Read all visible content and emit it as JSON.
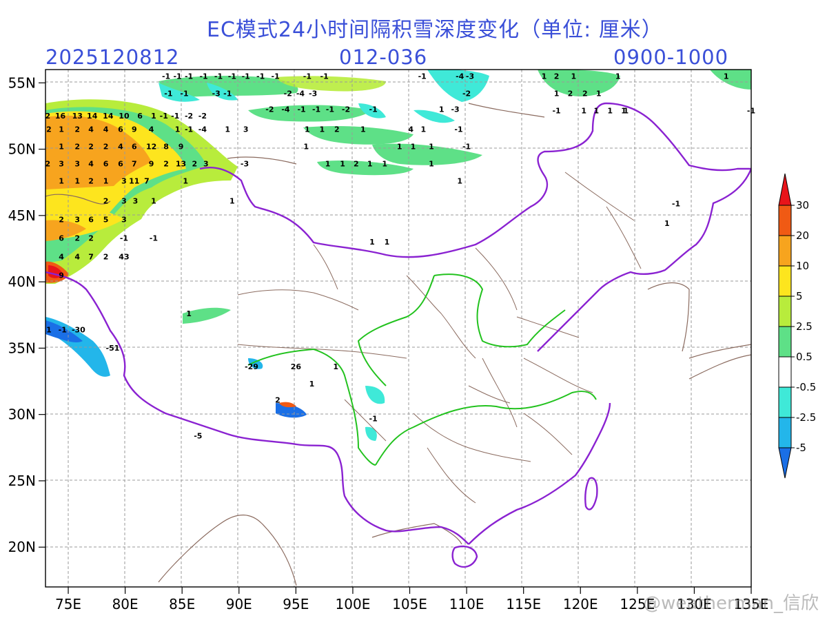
{
  "title": "EC模式24小时间隔积雪深度变化（单位: 厘米）",
  "init_time": "2025120812",
  "forecast_range": "012-036",
  "valid_range": "0900-1000",
  "watermark": "@weatherman_信欣",
  "lat_labels": [
    "55N",
    "50N",
    "45N",
    "40N",
    "35N",
    "30N",
    "25N",
    "20N"
  ],
  "lon_labels": [
    "75E",
    "80E",
    "85E",
    "90E",
    "95E",
    "100E",
    "105E",
    "110E",
    "115E",
    "120E",
    "125E",
    "130E",
    "135E"
  ],
  "colorbar": {
    "labels": [
      "30",
      "20",
      "10",
      "5",
      "2.5",
      "0.5",
      "-0.5",
      "-2.5",
      "-5"
    ],
    "colors": [
      "#e8141a",
      "#f05a14",
      "#f7a41e",
      "#fde51e",
      "#b8ec3c",
      "#5ee087",
      "#ffffff",
      "#3fe9d8",
      "#23b6ea",
      "#1a6fe6"
    ]
  },
  "map": {
    "region": "China",
    "lon_range": [
      73,
      135
    ],
    "lat_range": [
      17,
      56
    ],
    "gridlines": "dashed",
    "borders": {
      "national": "#8a22d1",
      "provincial": "#8a6a5e",
      "drainage": "#22c21e"
    }
  },
  "value_labels": [
    {
      "t": "2",
      "lon": 73.2,
      "lat": 52.3
    },
    {
      "t": "16",
      "lon": 74.3,
      "lat": 52.3
    },
    {
      "t": "13",
      "lon": 75.8,
      "lat": 52.3
    },
    {
      "t": "14",
      "lon": 77.1,
      "lat": 52.3
    },
    {
      "t": "14",
      "lon": 78.5,
      "lat": 52.3
    },
    {
      "t": "10",
      "lon": 79.9,
      "lat": 52.3
    },
    {
      "t": "6",
      "lon": 81.3,
      "lat": 52.3
    },
    {
      "t": "1",
      "lon": 82.5,
      "lat": 52.3
    },
    {
      "t": "-1",
      "lon": 83.4,
      "lat": 52.3
    },
    {
      "t": "-1",
      "lon": 84.4,
      "lat": 52.3
    },
    {
      "t": "-2",
      "lon": 85.6,
      "lat": 52.3
    },
    {
      "t": "-2",
      "lon": 86.8,
      "lat": 52.3
    },
    {
      "t": "2",
      "lon": 73.3,
      "lat": 51.3
    },
    {
      "t": "1",
      "lon": 74.4,
      "lat": 51.3
    },
    {
      "t": "2",
      "lon": 75.8,
      "lat": 51.3
    },
    {
      "t": "4",
      "lon": 77.0,
      "lat": 51.3
    },
    {
      "t": "4",
      "lon": 78.3,
      "lat": 51.3
    },
    {
      "t": "6",
      "lon": 79.6,
      "lat": 51.3
    },
    {
      "t": "9",
      "lon": 80.8,
      "lat": 51.3
    },
    {
      "t": "4",
      "lon": 82.3,
      "lat": 51.3
    },
    {
      "t": "1",
      "lon": 84.6,
      "lat": 51.3
    },
    {
      "t": "-1",
      "lon": 85.6,
      "lat": 51.3
    },
    {
      "t": "-4",
      "lon": 86.8,
      "lat": 51.3
    },
    {
      "t": "1",
      "lon": 89.0,
      "lat": 51.3
    },
    {
      "t": "3",
      "lon": 90.6,
      "lat": 51.3
    },
    {
      "t": "1",
      "lon": 74.4,
      "lat": 50.0
    },
    {
      "t": "2",
      "lon": 75.8,
      "lat": 50.0
    },
    {
      "t": "2",
      "lon": 77.0,
      "lat": 50.0
    },
    {
      "t": "2",
      "lon": 78.3,
      "lat": 50.0
    },
    {
      "t": "4",
      "lon": 79.6,
      "lat": 50.0
    },
    {
      "t": "6",
      "lon": 80.8,
      "lat": 50.0
    },
    {
      "t": "12",
      "lon": 82.3,
      "lat": 50.0
    },
    {
      "t": "8",
      "lon": 83.6,
      "lat": 50.0
    },
    {
      "t": "9",
      "lon": 84.9,
      "lat": 50.0
    },
    {
      "t": "2",
      "lon": 73.2,
      "lat": 48.7
    },
    {
      "t": "3",
      "lon": 74.4,
      "lat": 48.7
    },
    {
      "t": "3",
      "lon": 75.8,
      "lat": 48.7
    },
    {
      "t": "4",
      "lon": 77.0,
      "lat": 48.7
    },
    {
      "t": "6",
      "lon": 78.3,
      "lat": 48.7
    },
    {
      "t": "6",
      "lon": 79.6,
      "lat": 48.7
    },
    {
      "t": "7",
      "lon": 80.8,
      "lat": 48.7
    },
    {
      "t": "9",
      "lon": 82.3,
      "lat": 48.7
    },
    {
      "t": "2",
      "lon": 83.6,
      "lat": 48.7
    },
    {
      "t": "13",
      "lon": 84.9,
      "lat": 48.7
    },
    {
      "t": "2",
      "lon": 86.1,
      "lat": 48.7
    },
    {
      "t": "3",
      "lon": 87.1,
      "lat": 48.7
    },
    {
      "t": "-3",
      "lon": 90.5,
      "lat": 48.7
    },
    {
      "t": "1",
      "lon": 74.4,
      "lat": 47.4
    },
    {
      "t": "1",
      "lon": 75.8,
      "lat": 47.4
    },
    {
      "t": "2",
      "lon": 77.0,
      "lat": 47.4
    },
    {
      "t": "1",
      "lon": 78.3,
      "lat": 47.4
    },
    {
      "t": "3",
      "lon": 79.9,
      "lat": 47.4
    },
    {
      "t": "11",
      "lon": 80.8,
      "lat": 47.4
    },
    {
      "t": "7",
      "lon": 81.9,
      "lat": 47.4
    },
    {
      "t": "1",
      "lon": 85.3,
      "lat": 47.4
    },
    {
      "t": "2",
      "lon": 78.3,
      "lat": 45.9
    },
    {
      "t": "3",
      "lon": 79.9,
      "lat": 45.9
    },
    {
      "t": "3",
      "lon": 80.9,
      "lat": 45.9
    },
    {
      "t": "1",
      "lon": 82.5,
      "lat": 45.9
    },
    {
      "t": "1",
      "lon": 89.4,
      "lat": 45.9
    },
    {
      "t": "2",
      "lon": 74.4,
      "lat": 44.5
    },
    {
      "t": "3",
      "lon": 75.8,
      "lat": 44.5
    },
    {
      "t": "6",
      "lon": 77.0,
      "lat": 44.5
    },
    {
      "t": "5",
      "lon": 78.3,
      "lat": 44.5
    },
    {
      "t": "3",
      "lon": 79.9,
      "lat": 44.5
    },
    {
      "t": "6",
      "lon": 74.4,
      "lat": 43.1
    },
    {
      "t": "2",
      "lon": 75.8,
      "lat": 43.1
    },
    {
      "t": "2",
      "lon": 77.0,
      "lat": 43.1
    },
    {
      "t": "-1",
      "lon": 79.9,
      "lat": 43.1
    },
    {
      "t": "-1",
      "lon": 82.5,
      "lat": 43.1
    },
    {
      "t": "4",
      "lon": 74.4,
      "lat": 41.7
    },
    {
      "t": "4",
      "lon": 75.8,
      "lat": 41.7
    },
    {
      "t": "7",
      "lon": 77.0,
      "lat": 41.7
    },
    {
      "t": "2",
      "lon": 78.3,
      "lat": 41.7
    },
    {
      "t": "43",
      "lon": 79.9,
      "lat": 41.7
    },
    {
      "t": "9",
      "lon": 74.4,
      "lat": 40.3
    },
    {
      "t": "1",
      "lon": 73.3,
      "lat": 36.2
    },
    {
      "t": "-1",
      "lon": 74.5,
      "lat": 36.2
    },
    {
      "t": "-30",
      "lon": 75.9,
      "lat": 36.2
    },
    {
      "t": "-51",
      "lon": 78.9,
      "lat": 34.8
    },
    {
      "t": "1",
      "lon": 85.6,
      "lat": 37.4
    },
    {
      "t": "-29",
      "lon": 91.1,
      "lat": 33.4
    },
    {
      "t": "26",
      "lon": 95.0,
      "lat": 33.4
    },
    {
      "t": "1",
      "lon": 98.5,
      "lat": 33.4
    },
    {
      "t": "1",
      "lon": 96.4,
      "lat": 32.1
    },
    {
      "t": "2",
      "lon": 93.4,
      "lat": 30.9
    },
    {
      "t": "-1",
      "lon": 101.8,
      "lat": 29.5
    },
    {
      "t": "-5",
      "lon": 86.4,
      "lat": 28.2
    },
    {
      "t": "1",
      "lon": 101.7,
      "lat": 42.8
    },
    {
      "t": "1",
      "lon": 103.0,
      "lat": 42.8
    },
    {
      "t": "-1",
      "lon": 83.6,
      "lat": 55.3
    },
    {
      "t": "-1",
      "lon": 84.6,
      "lat": 55.3
    },
    {
      "t": "-1",
      "lon": 85.6,
      "lat": 55.3
    },
    {
      "t": "-1",
      "lon": 86.9,
      "lat": 55.3
    },
    {
      "t": "-1",
      "lon": 88.2,
      "lat": 55.3
    },
    {
      "t": "-1",
      "lon": 89.4,
      "lat": 55.3
    },
    {
      "t": "-1",
      "lon": 90.6,
      "lat": 55.3
    },
    {
      "t": "-1",
      "lon": 91.9,
      "lat": 55.3
    },
    {
      "t": "-1",
      "lon": 93.2,
      "lat": 55.3
    },
    {
      "t": "-1",
      "lon": 96.0,
      "lat": 55.3
    },
    {
      "t": "-1",
      "lon": 97.5,
      "lat": 55.3
    },
    {
      "t": "-1",
      "lon": 83.8,
      "lat": 54.0
    },
    {
      "t": "-1",
      "lon": 85.2,
      "lat": 54.0
    },
    {
      "t": "-3",
      "lon": 88.0,
      "lat": 54.0
    },
    {
      "t": "-1",
      "lon": 89.0,
      "lat": 54.0
    },
    {
      "t": "-2",
      "lon": 94.3,
      "lat": 54.0
    },
    {
      "t": "-4",
      "lon": 95.4,
      "lat": 54.0
    },
    {
      "t": "-3",
      "lon": 96.5,
      "lat": 54.0
    },
    {
      "t": "-2",
      "lon": 92.7,
      "lat": 52.8
    },
    {
      "t": "-4",
      "lon": 94.1,
      "lat": 52.8
    },
    {
      "t": "-1",
      "lon": 95.5,
      "lat": 52.8
    },
    {
      "t": "-1",
      "lon": 96.8,
      "lat": 52.8
    },
    {
      "t": "-1",
      "lon": 98.0,
      "lat": 52.8
    },
    {
      "t": "-2",
      "lon": 99.4,
      "lat": 52.8
    },
    {
      "t": "-1",
      "lon": 101.8,
      "lat": 52.8
    },
    {
      "t": "1",
      "lon": 96.0,
      "lat": 51.3
    },
    {
      "t": "1",
      "lon": 97.3,
      "lat": 51.3
    },
    {
      "t": "2",
      "lon": 98.6,
      "lat": 51.3
    },
    {
      "t": "1",
      "lon": 100.9,
      "lat": 51.3
    },
    {
      "t": "4",
      "lon": 105.1,
      "lat": 51.3
    },
    {
      "t": "1",
      "lon": 106.2,
      "lat": 51.3
    },
    {
      "t": "-1",
      "lon": 109.3,
      "lat": 51.3
    },
    {
      "t": "1",
      "lon": 95.9,
      "lat": 50.0
    },
    {
      "t": "1",
      "lon": 104.1,
      "lat": 50.0
    },
    {
      "t": "1",
      "lon": 105.3,
      "lat": 50.0
    },
    {
      "t": "1",
      "lon": 106.9,
      "lat": 50.0
    },
    {
      "t": "-1",
      "lon": 110.0,
      "lat": 50.0
    },
    {
      "t": "1",
      "lon": 97.8,
      "lat": 48.7
    },
    {
      "t": "1",
      "lon": 99.1,
      "lat": 48.7
    },
    {
      "t": "2",
      "lon": 100.3,
      "lat": 48.7
    },
    {
      "t": "1",
      "lon": 101.5,
      "lat": 48.7
    },
    {
      "t": "1",
      "lon": 102.8,
      "lat": 48.7
    },
    {
      "t": "1",
      "lon": 106.9,
      "lat": 48.7
    },
    {
      "t": "1",
      "lon": 109.4,
      "lat": 47.4
    },
    {
      "t": "-1",
      "lon": 106.1,
      "lat": 55.3
    },
    {
      "t": "-4",
      "lon": 109.4,
      "lat": 55.3
    },
    {
      "t": "-3",
      "lon": 110.3,
      "lat": 55.3
    },
    {
      "t": "-2",
      "lon": 110.0,
      "lat": 54.0
    },
    {
      "t": "1",
      "lon": 107.8,
      "lat": 52.8
    },
    {
      "t": "-3",
      "lon": 109.0,
      "lat": 52.8
    },
    {
      "t": "1",
      "lon": 116.8,
      "lat": 55.3
    },
    {
      "t": "2",
      "lon": 117.9,
      "lat": 55.3
    },
    {
      "t": "1",
      "lon": 119.4,
      "lat": 55.3
    },
    {
      "t": "1",
      "lon": 123.3,
      "lat": 55.3
    },
    {
      "t": "1",
      "lon": 132.8,
      "lat": 55.3
    },
    {
      "t": "1",
      "lon": 117.9,
      "lat": 54.0
    },
    {
      "t": "2",
      "lon": 119.1,
      "lat": 54.0
    },
    {
      "t": "2",
      "lon": 120.4,
      "lat": 54.0
    },
    {
      "t": "1",
      "lon": 121.6,
      "lat": 54.0
    },
    {
      "t": "-1",
      "lon": 117.9,
      "lat": 52.7
    },
    {
      "t": "1",
      "lon": 120.3,
      "lat": 52.7
    },
    {
      "t": "1",
      "lon": 121.4,
      "lat": 52.7
    },
    {
      "t": "1",
      "lon": 122.6,
      "lat": 52.7
    },
    {
      "t": "1",
      "lon": 123.8,
      "lat": 52.7
    },
    {
      "t": "1",
      "lon": 124.0,
      "lat": 52.7
    },
    {
      "t": "-1",
      "lon": 135.0,
      "lat": 52.7
    },
    {
      "t": "-1",
      "lon": 128.4,
      "lat": 45.7
    },
    {
      "t": "1",
      "lon": 127.6,
      "lat": 44.2
    }
  ]
}
